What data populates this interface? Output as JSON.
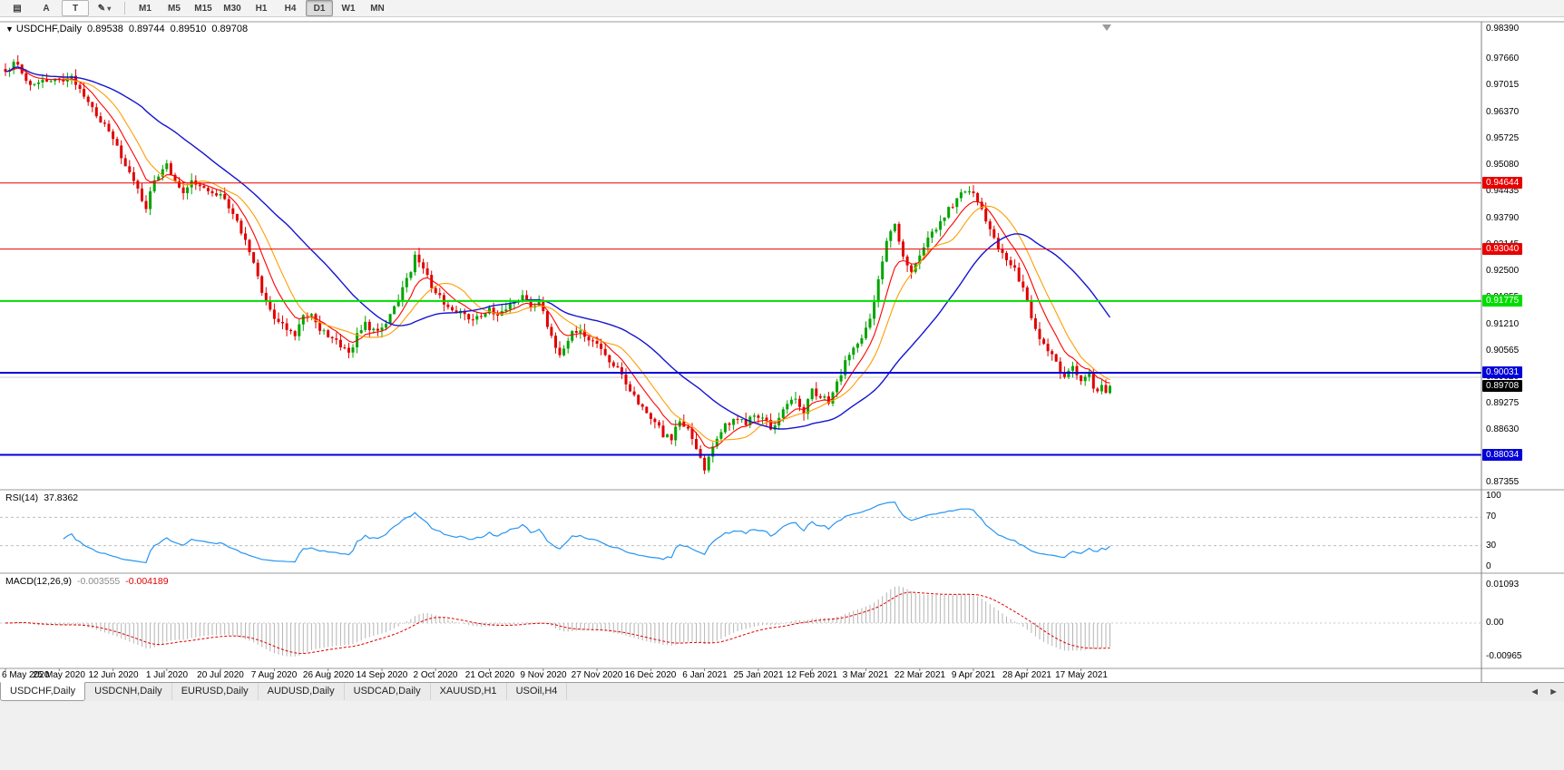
{
  "toolbar": {
    "icons": [
      {
        "name": "menu-grid",
        "glyph": "▤"
      },
      {
        "name": "font-tool",
        "glyph": "A"
      },
      {
        "name": "text-tool",
        "glyph": "T",
        "boxed": true
      },
      {
        "name": "crayon-tool",
        "glyph": "✎",
        "caret": "▾"
      }
    ],
    "timeframes": [
      "M1",
      "M5",
      "M15",
      "M30",
      "H1",
      "H4",
      "D1",
      "W1",
      "MN"
    ],
    "active_timeframe": "D1"
  },
  "chart": {
    "collapse_glyph": "▼",
    "title": "USDCHF,Daily",
    "ohlc": [
      "0.89538",
      "0.89744",
      "0.89510",
      "0.89708"
    ],
    "current_price": "0.89708",
    "price_ticks": [
      "0.98390",
      "0.97660",
      "0.97015",
      "0.96370",
      "0.95725",
      "0.95080",
      "0.94435",
      "0.93790",
      "0.93145",
      "0.92500",
      "0.91855",
      "0.91210",
      "0.90565",
      "0.89920",
      "0.89275",
      "0.88630",
      "0.87985",
      "0.87355"
    ],
    "levels": [
      {
        "label": "0.94644",
        "price": 0.94644,
        "color": "#e80000",
        "width": 1
      },
      {
        "label": "0.93040",
        "price": 0.9304,
        "color": "#e80000",
        "width": 1
      },
      {
        "label": "0.91775",
        "price": 0.91775,
        "color": "#00dd00",
        "width": 2
      },
      {
        "label": "0.90031",
        "price": 0.90031,
        "color": "#0000d8",
        "width": 2
      },
      {
        "label": "0.88034",
        "price": 0.88034,
        "color": "#0000d8",
        "width": 2
      }
    ],
    "grid_price": 0.8992
  },
  "rsi_panel": {
    "label": "RSI(14)",
    "value": "37.8362",
    "ticks": [
      "100",
      "70",
      "30",
      "0"
    ],
    "guides": [
      70,
      30
    ],
    "color": "#2795f2"
  },
  "macd_panel": {
    "label": "MACD(12,26,9)",
    "macd_value": "-0.003555",
    "signal_value": "-0.004189",
    "ticks": [
      "0.01093",
      "0.00",
      "-0.00965"
    ],
    "range": [
      -0.00965,
      0.01093
    ]
  },
  "time_axis": {
    "bars_per_label": 13,
    "dates": [
      "6 May 2020",
      "25 May 2020",
      "12 Jun 2020",
      "1 Jul 2020",
      "20 Jul 2020",
      "7 Aug 2020",
      "26 Aug 2020",
      "14 Sep 2020",
      "2 Oct 2020",
      "21 Oct 2020",
      "9 Nov 2020",
      "27 Nov 2020",
      "16 Dec 2020",
      "6 Jan 2021",
      "25 Jan 2021",
      "12 Feb 2021",
      "3 Mar 2021",
      "22 Mar 2021",
      "9 Apr 2021",
      "28 Apr 2021",
      "17 May 2021"
    ]
  },
  "tabs": {
    "items": [
      "USDCHF,Daily",
      "USDCNH,Daily",
      "EURUSD,Daily",
      "AUDUSD,Daily",
      "USDCAD,Daily",
      "XAUUSD,H1",
      "USOil,H4"
    ],
    "active": "USDCHF,Daily",
    "scroll_left": "◄",
    "scroll_right": "►"
  },
  "chart_data": {
    "type": "candlestick",
    "symbol": "USDCHF",
    "period": "Daily",
    "bar_count": 268,
    "ylim": [
      0.87185,
      0.98567
    ],
    "y_tick_labels": [
      "0.98390",
      "0.97660",
      "0.97015",
      "0.96370",
      "0.95725",
      "0.95080",
      "0.94435",
      "0.93790",
      "0.93145",
      "0.92500",
      "0.91855",
      "0.91210",
      "0.90565",
      "0.89920",
      "0.89275",
      "0.88630",
      "0.87985",
      "0.87355"
    ],
    "x_tick_labels": [
      "6 May 2020",
      "25 May 2020",
      "12 Jun 2020",
      "1 Jul 2020",
      "20 Jul 2020",
      "7 Aug 2020",
      "26 Aug 2020",
      "14 Sep 2020",
      "2 Oct 2020",
      "21 Oct 2020",
      "9 Nov 2020",
      "27 Nov 2020",
      "16 Dec 2020",
      "6 Jan 2021",
      "25 Jan 2021",
      "12 Feb 2021",
      "3 Mar 2021",
      "22 Mar 2021",
      "9 Apr 2021",
      "28 Apr 2021",
      "17 May 2021"
    ],
    "last_quote": {
      "open": 0.89538,
      "high": 0.89744,
      "low": 0.8951,
      "close": 0.89708
    },
    "horizontal_lines": [
      0.94644,
      0.9304,
      0.91775,
      0.90031,
      0.88034
    ],
    "moving_averages": [
      {
        "type": "ema",
        "period": 8,
        "color": "#ff0000"
      },
      {
        "type": "sma",
        "period": 13,
        "color": "#ff9d00"
      },
      {
        "type": "sma",
        "period": 34,
        "color": "#1414d2"
      }
    ],
    "indicators": [
      {
        "type": "rsi",
        "period": 14,
        "current": 37.8362,
        "range": [
          0,
          100
        ],
        "guides": [
          70,
          30
        ]
      },
      {
        "type": "macd",
        "fast": 12,
        "slow": 26,
        "signal": 9,
        "current_macd": -0.003555,
        "current_signal": -0.004189,
        "axis": [
          0.01093,
          0.0,
          -0.00965
        ]
      }
    ],
    "price_path": [
      [
        0,
        0.9742
      ],
      [
        3,
        0.9756
      ],
      [
        6,
        0.97
      ],
      [
        9,
        0.9718
      ],
      [
        13,
        0.9712
      ],
      [
        16,
        0.9722
      ],
      [
        19,
        0.9668
      ],
      [
        22,
        0.9632
      ],
      [
        25,
        0.9592
      ],
      [
        27,
        0.955
      ],
      [
        29,
        0.9505
      ],
      [
        31,
        0.9462
      ],
      [
        34,
        0.9408
      ],
      [
        36,
        0.9465
      ],
      [
        39,
        0.951
      ],
      [
        41,
        0.947
      ],
      [
        43,
        0.9448
      ],
      [
        45,
        0.9472
      ],
      [
        48,
        0.945
      ],
      [
        52,
        0.944
      ],
      [
        55,
        0.9395
      ],
      [
        57,
        0.9345
      ],
      [
        59,
        0.9295
      ],
      [
        61,
        0.9232
      ],
      [
        63,
        0.9178
      ],
      [
        65,
        0.9138
      ],
      [
        68,
        0.9112
      ],
      [
        70,
        0.9092
      ],
      [
        72,
        0.914
      ],
      [
        74,
        0.9152
      ],
      [
        76,
        0.911
      ],
      [
        78,
        0.9096
      ],
      [
        81,
        0.9064
      ],
      [
        83,
        0.9052
      ],
      [
        85,
        0.9092
      ],
      [
        87,
        0.912
      ],
      [
        89,
        0.9105
      ],
      [
        91,
        0.9112
      ],
      [
        93,
        0.9142
      ],
      [
        95,
        0.9178
      ],
      [
        97,
        0.923
      ],
      [
        99,
        0.9282
      ],
      [
        101,
        0.9252
      ],
      [
        103,
        0.9215
      ],
      [
        104,
        0.9205
      ],
      [
        106,
        0.9172
      ],
      [
        108,
        0.9158
      ],
      [
        110,
        0.9148
      ],
      [
        112,
        0.9135
      ],
      [
        114,
        0.9142
      ],
      [
        117,
        0.9158
      ],
      [
        119,
        0.9145
      ],
      [
        121,
        0.9152
      ],
      [
        123,
        0.9178
      ],
      [
        125,
        0.9188
      ],
      [
        127,
        0.9165
      ],
      [
        129,
        0.9178
      ],
      [
        131,
        0.912
      ],
      [
        133,
        0.9068
      ],
      [
        134,
        0.9052
      ],
      [
        136,
        0.9088
      ],
      [
        138,
        0.9108
      ],
      [
        140,
        0.909
      ],
      [
        143,
        0.9078
      ],
      [
        145,
        0.9042
      ],
      [
        147,
        0.9025
      ],
      [
        149,
        0.8992
      ],
      [
        151,
        0.8962
      ],
      [
        153,
        0.8932
      ],
      [
        155,
        0.8908
      ],
      [
        157,
        0.8888
      ],
      [
        159,
        0.8852
      ],
      [
        161,
        0.8842
      ],
      [
        163,
        0.8888
      ],
      [
        165,
        0.8872
      ],
      [
        167,
        0.8822
      ],
      [
        169,
        0.8765
      ],
      [
        171,
        0.8822
      ],
      [
        173,
        0.8862
      ],
      [
        175,
        0.8882
      ],
      [
        177,
        0.8892
      ],
      [
        179,
        0.8878
      ],
      [
        181,
        0.8898
      ],
      [
        183,
        0.8895
      ],
      [
        185,
        0.887
      ],
      [
        187,
        0.8895
      ],
      [
        189,
        0.8925
      ],
      [
        191,
        0.8938
      ],
      [
        193,
        0.891
      ],
      [
        195,
        0.8962
      ],
      [
        197,
        0.8945
      ],
      [
        199,
        0.893
      ],
      [
        201,
        0.8975
      ],
      [
        203,
        0.9035
      ],
      [
        205,
        0.9062
      ],
      [
        207,
        0.9085
      ],
      [
        209,
        0.913
      ],
      [
        211,
        0.9222
      ],
      [
        213,
        0.9325
      ],
      [
        215,
        0.9368
      ],
      [
        217,
        0.9292
      ],
      [
        219,
        0.9245
      ],
      [
        221,
        0.9295
      ],
      [
        223,
        0.9332
      ],
      [
        225,
        0.9358
      ],
      [
        227,
        0.9385
      ],
      [
        229,
        0.9412
      ],
      [
        231,
        0.9438
      ],
      [
        233,
        0.945
      ],
      [
        234,
        0.9432
      ],
      [
        236,
        0.9395
      ],
      [
        238,
        0.9348
      ],
      [
        240,
        0.9312
      ],
      [
        242,
        0.9282
      ],
      [
        244,
        0.9258
      ],
      [
        246,
        0.9205
      ],
      [
        248,
        0.9135
      ],
      [
        250,
        0.9092
      ],
      [
        252,
        0.9058
      ],
      [
        254,
        0.9022
      ],
      [
        256,
        0.8992
      ],
      [
        258,
        0.9018
      ],
      [
        260,
        0.8985
      ],
      [
        262,
        0.9002
      ],
      [
        263,
        0.8968
      ],
      [
        264,
        0.895
      ],
      [
        265,
        0.8972
      ],
      [
        266,
        0.8952
      ],
      [
        267,
        0.89708
      ]
    ],
    "colors": {
      "up": "#00a400",
      "down": "#e00000",
      "histogram": "#b4b4b4",
      "signal": "#e00000",
      "grid": "#cfcfcf"
    }
  }
}
